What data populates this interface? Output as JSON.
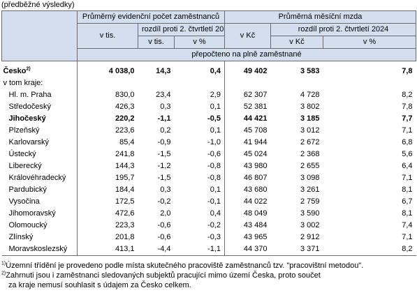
{
  "caption": "(předběžné výsledky)",
  "header": {
    "group1": "Průměrný evidenční počet zaměstnanců",
    "group2": "Průměrná měsíční mzda",
    "v_tis": "v tis.",
    "rozdil": "rozdíl proti 2. čtvrtletí 2024",
    "v_kc": "v Kč",
    "sub_v_tis": "v tis.",
    "sub_pct1": "v %",
    "sub_v_kc": "v Kč",
    "sub_pct2": "v %",
    "prepocteno": "přepočteno na plně zaměstnané"
  },
  "total": {
    "name": "Česko",
    "sup": "2)",
    "values": [
      "4 038,0",
      "14,3",
      "0,4",
      "49 402",
      "3 583",
      "7,8"
    ]
  },
  "vtom": "v tom kraje:",
  "regions": [
    {
      "name": "Hl. m. Praha",
      "values": [
        "830,0",
        "23,4",
        "2,9",
        "62 307",
        "4 728",
        "8,2"
      ]
    },
    {
      "name": "Středočeský",
      "values": [
        "426,3",
        "0,3",
        "0,1",
        "52 381",
        "3 802",
        "7,8"
      ]
    },
    {
      "name": "Jihočeský",
      "bold": true,
      "values": [
        "220,2",
        "-1,1",
        "-0,5",
        "44 421",
        "3 185",
        "7,7"
      ]
    },
    {
      "name": "Plzeňský",
      "values": [
        "223,6",
        "0,2",
        "0,1",
        "45 708",
        "3 012",
        "7,1"
      ]
    },
    {
      "name": "Karlovarský",
      "values": [
        "85,4",
        "-0,9",
        "-1,0",
        "41 944",
        "2 672",
        "6,8"
      ]
    },
    {
      "name": "Ústecký",
      "values": [
        "241,8",
        "-1,5",
        "-0,6",
        "45 024",
        "2 368",
        "5,6"
      ]
    },
    {
      "name": "Liberecký",
      "values": [
        "144,3",
        "-1,2",
        "-0,8",
        "43 980",
        "2 655",
        "6,4"
      ]
    },
    {
      "name": "Královéhradecký",
      "values": [
        "195,7",
        "-1,5",
        "-0,8",
        "46 807",
        "3 098",
        "7,1"
      ]
    },
    {
      "name": "Pardubický",
      "values": [
        "184,4",
        "0,3",
        "0,1",
        "43 680",
        "3 261",
        "8,1"
      ]
    },
    {
      "name": "Vysočina",
      "values": [
        "172,5",
        "-0,2",
        "-0,1",
        "44 022",
        "2 759",
        "6,7"
      ]
    },
    {
      "name": "Jihomoravský",
      "values": [
        "472,6",
        "2,0",
        "0,4",
        "48 049",
        "3 590",
        "8,1"
      ]
    },
    {
      "name": "Olomoucký",
      "values": [
        "223,3",
        "-0,6",
        "-0,2",
        "43 484",
        "3 002",
        "7,4"
      ]
    },
    {
      "name": "Zlínský",
      "values": [
        "201,8",
        "-0,6",
        "-0,3",
        "43 965",
        "2 912",
        "7,1"
      ]
    },
    {
      "name": "Moravskoslezský",
      "values": [
        "413,1",
        "-4,4",
        "-1,1",
        "44 370",
        "3 371",
        "8,2"
      ]
    }
  ],
  "notes": {
    "n1_sup": "1)",
    "n1": "Územní třídění je provedeno podle místa skutečného pracoviště zaměstnanců tzv. \"pracovištní metodou\".",
    "n2_sup": "2)",
    "n2a": "Zahrnuti jsou i zaměstnanci sledovaných subjektů pracující mimo území Česka, proto součet",
    "n2b": "za kraje nemusí souhlasit s údajem za Česko celkem."
  }
}
